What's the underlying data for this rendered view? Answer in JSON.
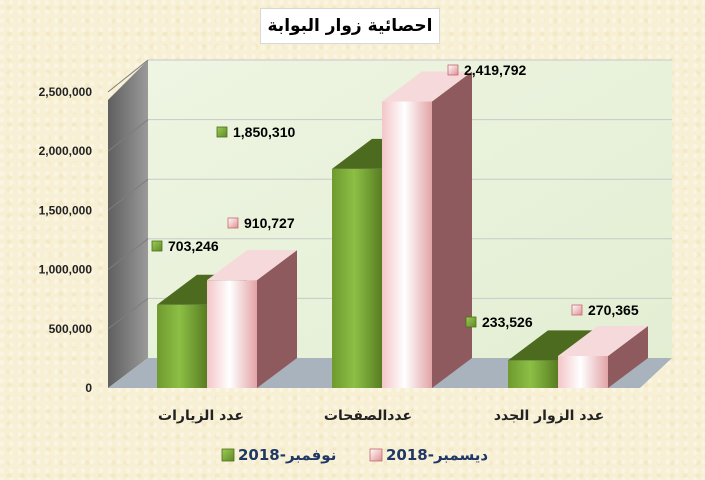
{
  "chart_data": {
    "type": "bar",
    "title": "احصائية زوار البوابة",
    "categories": [
      "عدد الزيارات",
      "عددالصفحات",
      "عدد الزوار الجدد"
    ],
    "series": [
      {
        "name": "نوفمبر-2018",
        "color": "#7aa43a",
        "values": [
          703246,
          1850310,
          233526
        ],
        "labels": [
          "703,246",
          "1,850,310",
          "233,526"
        ]
      },
      {
        "name": "ديسمبر-2018",
        "color": "#e8a0a4",
        "values": [
          910727,
          2419792,
          270365
        ],
        "labels": [
          "910,727",
          "2,419,792",
          "270,365"
        ]
      }
    ],
    "yticks": [
      "0",
      "500,000",
      "1,000,000",
      "1,500,000",
      "2,000,000",
      "2,500,000"
    ],
    "ylim": [
      0,
      2500000
    ],
    "grid": true,
    "legend_position": "bottom",
    "style": "3d-clustered-bar"
  }
}
